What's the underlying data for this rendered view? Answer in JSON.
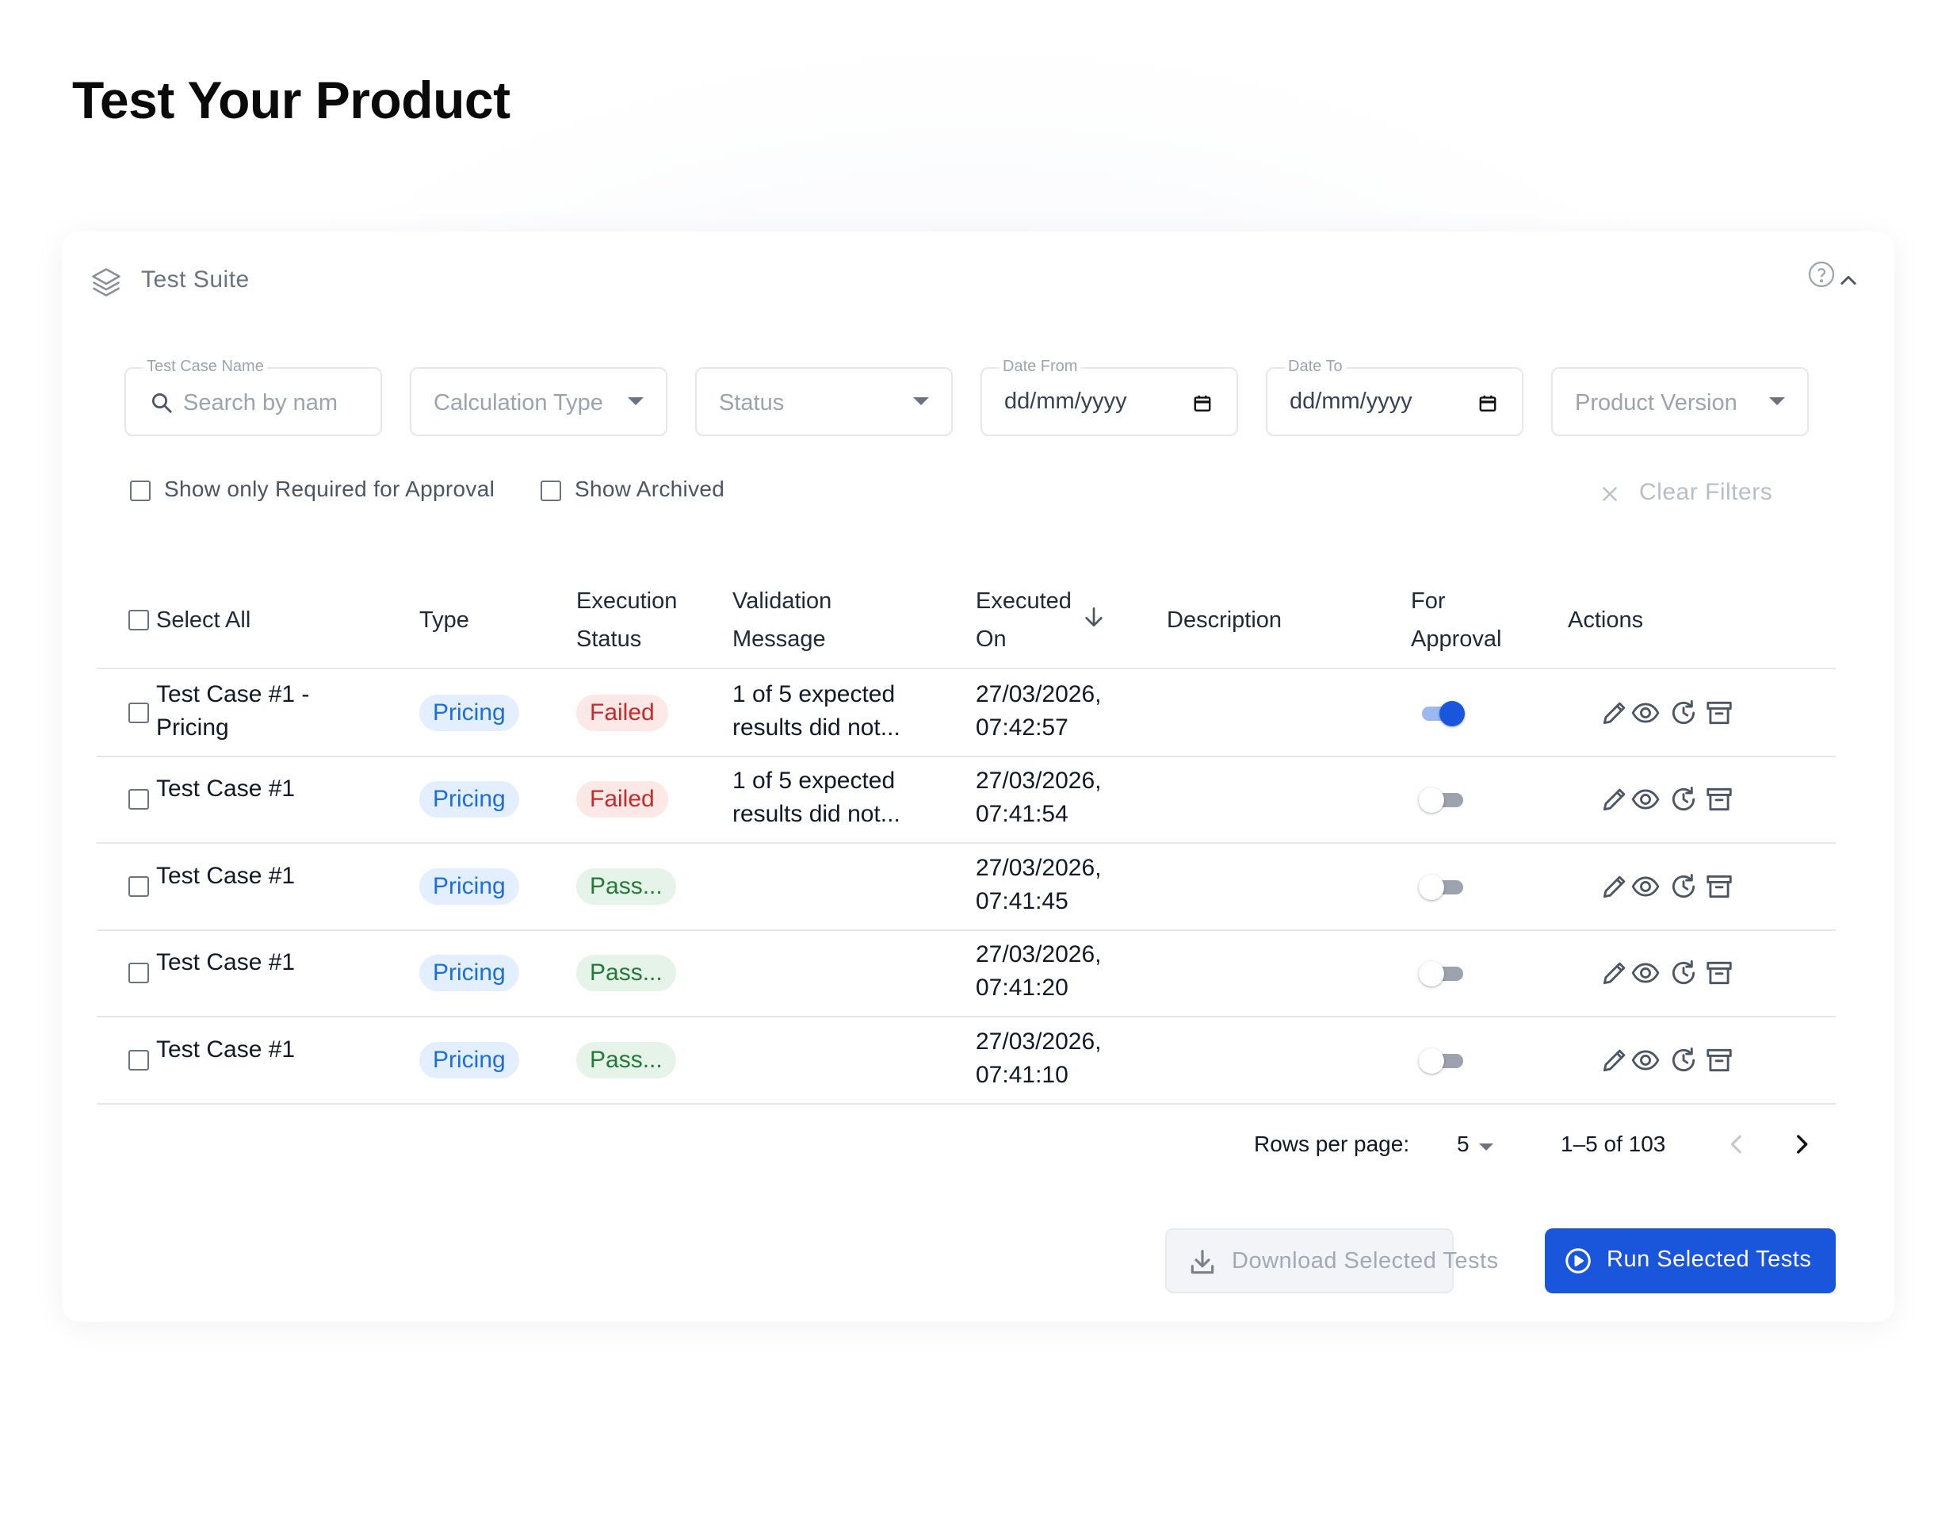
{
  "page": {
    "title": "Test Your Product"
  },
  "card": {
    "title": "Test Suite"
  },
  "filters": {
    "test_case_name": {
      "label": "Test Case Name",
      "placeholder": "Search by nam"
    },
    "calculation_type": {
      "placeholder": "Calculation Type"
    },
    "status": {
      "placeholder": "Status"
    },
    "date_from": {
      "label": "Date From",
      "value": "dd/mm/yyyy"
    },
    "date_to": {
      "label": "Date To",
      "value": "dd/mm/yyyy"
    },
    "product_version": {
      "placeholder": "Product Version"
    },
    "required_for_approval": {
      "label": "Show only Required for Approval",
      "checked": false
    },
    "show_archived": {
      "label": "Show Archived",
      "checked": false
    },
    "clear_filters": "Clear Filters"
  },
  "table": {
    "select_all": "Select All",
    "columns": {
      "type": "Type",
      "execution_status_1": "Execution",
      "execution_status_2": "Status",
      "validation_message_1": "Validation",
      "validation_message_2": "Message",
      "executed_on_1": "Executed",
      "executed_on_2": "On",
      "description": "Description",
      "for_approval_1": "For",
      "for_approval_2": "Approval",
      "actions": "Actions"
    },
    "sort": {
      "column": "Executed On",
      "direction": "descending"
    },
    "rows": [
      {
        "name_1": "Test Case #1 -",
        "name_2": "Pricing",
        "type": "Pricing",
        "status": "Failed",
        "status_kind": "failed",
        "message_1": "1 of 5 expected",
        "message_2": "results did not...",
        "executed_date": "27/03/2026,",
        "executed_time": "07:42:57",
        "description": "",
        "for_approval": true
      },
      {
        "name_1": "Test Case #1",
        "name_2": "",
        "type": "Pricing",
        "status": "Failed",
        "status_kind": "failed",
        "message_1": "1 of 5 expected",
        "message_2": "results did not...",
        "executed_date": "27/03/2026,",
        "executed_time": "07:41:54",
        "description": "",
        "for_approval": false
      },
      {
        "name_1": "Test Case #1",
        "name_2": "",
        "type": "Pricing",
        "status": "Pass...",
        "status_kind": "passed",
        "message_1": "",
        "message_2": "",
        "executed_date": "27/03/2026,",
        "executed_time": "07:41:45",
        "description": "",
        "for_approval": false
      },
      {
        "name_1": "Test Case #1",
        "name_2": "",
        "type": "Pricing",
        "status": "Pass...",
        "status_kind": "passed",
        "message_1": "",
        "message_2": "",
        "executed_date": "27/03/2026,",
        "executed_time": "07:41:20",
        "description": "",
        "for_approval": false
      },
      {
        "name_1": "Test Case #1",
        "name_2": "",
        "type": "Pricing",
        "status": "Pass...",
        "status_kind": "passed",
        "message_1": "",
        "message_2": "",
        "executed_date": "27/03/2026,",
        "executed_time": "07:41:10",
        "description": "",
        "for_approval": false
      }
    ],
    "row_actions": [
      "pencil-icon",
      "eye-icon",
      "history-icon",
      "archive-icon"
    ]
  },
  "pagination": {
    "rows_per_page_label": "Rows per page:",
    "rows_per_page": "5",
    "range": "1–5 of 103"
  },
  "buttons": {
    "download": "Download Selected Tests",
    "run": "Run Selected Tests"
  },
  "colors": {
    "primary": "#1a56db",
    "failed_bg": "#fde8e8",
    "failed_text": "#c42b2b",
    "passed_bg": "#e6f3e8",
    "passed_text": "#237a37",
    "type_bg": "#e3efff",
    "type_text": "#1d6fd8"
  }
}
